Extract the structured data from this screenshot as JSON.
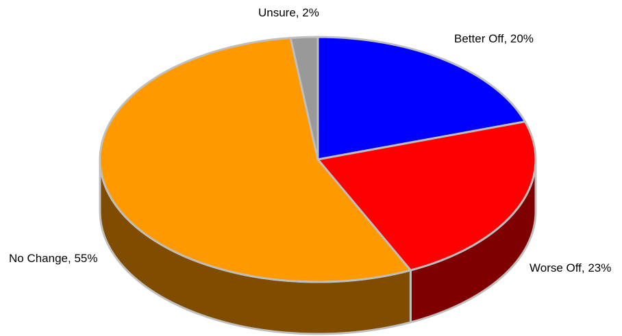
{
  "chart_data": {
    "type": "pie",
    "style": "3d",
    "title": "",
    "legend": "none",
    "slices": [
      {
        "label": "Better Off",
        "value": 20,
        "display": "Better Off, 20%",
        "color": "#0000ff",
        "side_color": "#00007f"
      },
      {
        "label": "Worse Off",
        "value": 23,
        "display": "Worse Off, 23%",
        "color": "#ff0000",
        "side_color": "#7f0000"
      },
      {
        "label": "No Change",
        "value": 55,
        "display": "No Change, 55%",
        "color": "#ff9900",
        "side_color": "#7f4c00"
      },
      {
        "label": "Unsure",
        "value": 2,
        "display": "Unsure, 2%",
        "color": "#999999",
        "side_color": "#4c4c4c"
      }
    ],
    "border_color": "#bfbfbf"
  }
}
